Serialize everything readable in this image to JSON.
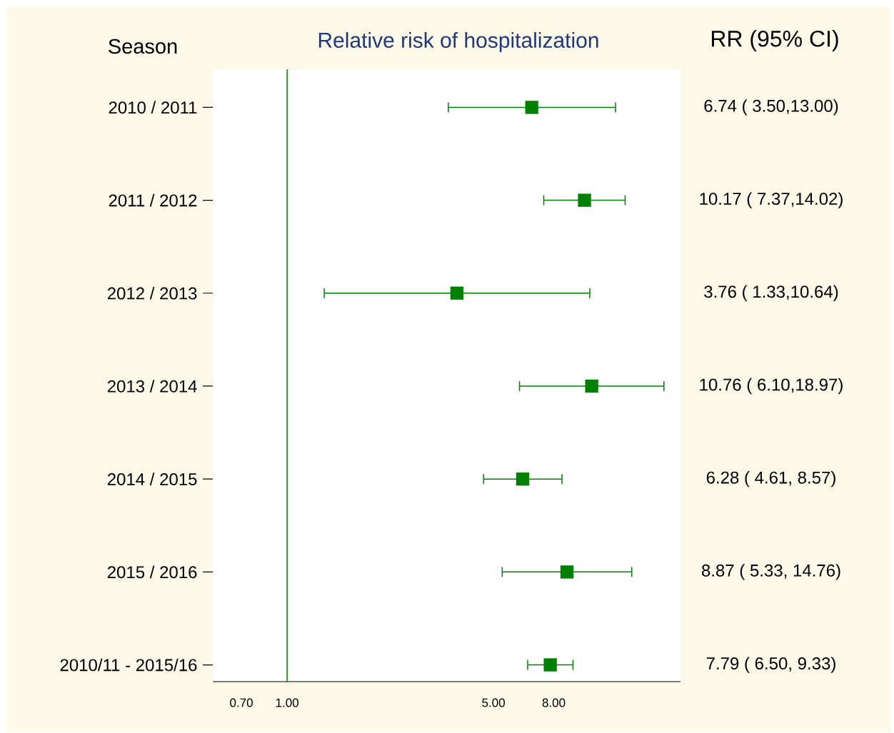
{
  "chart_data": {
    "type": "scatter",
    "orientation": "horizontal",
    "title": "Relative risk of hospitalization",
    "ylabel": "Season",
    "annotations": [
      "RR (95% CI)"
    ],
    "categories": [
      "2010 / 2011",
      "2011 / 2012",
      "2012 / 2013",
      "2013 / 2014",
      "2014 / 2015",
      "2015 / 2016",
      "2010/11 - 2015/16"
    ],
    "values": [
      6.74,
      10.17,
      3.76,
      10.76,
      6.28,
      8.87,
      7.79
    ],
    "errors": [
      [
        3.5,
        13.0
      ],
      [
        7.37,
        14.02
      ],
      [
        1.33,
        10.64
      ],
      [
        6.1,
        18.97
      ],
      [
        4.61,
        8.57
      ],
      [
        5.33,
        14.76
      ],
      [
        6.5,
        9.33
      ]
    ],
    "value_labels": [
      "6.74 ( 3.50,13.00)",
      "10.17 ( 7.37,14.02)",
      "3.76 ( 1.33,10.64)",
      "10.76 ( 6.10,18.97)",
      "6.28 ( 4.61, 8.57)",
      "8.87 ( 5.33, 14.76)",
      "7.79 ( 6.50, 9.33)"
    ],
    "color": "#008000",
    "marker": "square",
    "log": "x",
    "xlim": [
      0.56,
      21.5
    ],
    "xticks": [
      {
        "value": 0.7,
        "label": "0.70"
      },
      {
        "value": 1,
        "label": "1.00"
      },
      {
        "value": 5,
        "label": "5.00"
      },
      {
        "value": 8,
        "label": "8.00"
      }
    ],
    "ref_lines": [
      {
        "axis": "x",
        "value": 1,
        "color": "#008000"
      }
    ]
  }
}
